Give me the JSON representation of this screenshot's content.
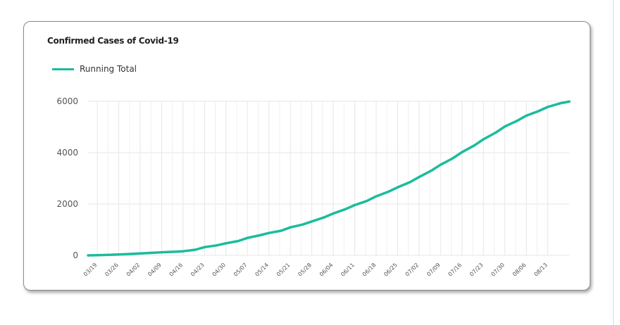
{
  "chart_data": {
    "type": "line",
    "title": "Confirmed Cases of Covid-19",
    "xlabel": "",
    "ylabel": "",
    "ylim": [
      0,
      6000
    ],
    "yticks": [
      0,
      2000,
      4000,
      6000
    ],
    "grid": true,
    "legend_position": "top-left",
    "colors": {
      "line": "#1abc9c",
      "grid": "#e6e6e6",
      "axis_text": "#555555"
    },
    "x_tick_labels": [
      "03/19",
      "03/26",
      "04/02",
      "04/09",
      "04/16",
      "04/23",
      "04/30",
      "05/07",
      "05/14",
      "05/21",
      "05/28",
      "06/04",
      "06/11",
      "06/18",
      "06/25",
      "07/02",
      "07/09",
      "07/16",
      "07/23",
      "07/30",
      "08/06",
      "08/13"
    ],
    "series": [
      {
        "name": "Running Total",
        "x": [
          "03/16",
          "03/19",
          "03/23",
          "03/26",
          "03/30",
          "04/02",
          "04/06",
          "04/09",
          "04/13",
          "04/16",
          "04/20",
          "04/23",
          "04/27",
          "04/30",
          "05/04",
          "05/07",
          "05/11",
          "05/14",
          "05/18",
          "05/21",
          "05/25",
          "05/28",
          "06/01",
          "06/04",
          "06/08",
          "06/11",
          "06/15",
          "06/18",
          "06/22",
          "06/25",
          "06/29",
          "07/02",
          "07/06",
          "07/09",
          "07/13",
          "07/16",
          "07/20",
          "07/23",
          "07/27",
          "07/30",
          "08/03",
          "08/06",
          "08/10",
          "08/13",
          "08/17",
          "08/20"
        ],
        "values": [
          0,
          5,
          20,
          35,
          55,
          75,
          100,
          120,
          140,
          160,
          220,
          320,
          390,
          470,
          560,
          680,
          780,
          870,
          960,
          1090,
          1200,
          1320,
          1480,
          1630,
          1800,
          1960,
          2120,
          2300,
          2480,
          2650,
          2850,
          3050,
          3300,
          3530,
          3780,
          4020,
          4280,
          4520,
          4780,
          5020,
          5240,
          5440,
          5620,
          5780,
          5920,
          5990
        ]
      }
    ]
  }
}
